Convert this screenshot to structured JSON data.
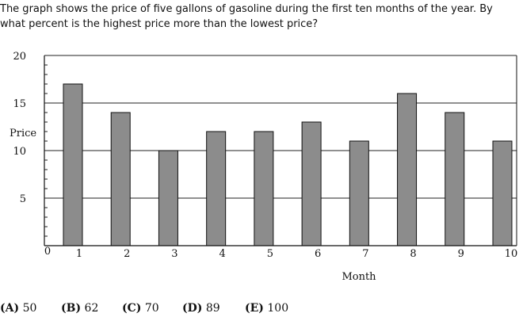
{
  "question": {
    "text": "The graph shows the price of five gallons of gasoline during the first ten months of the year. By what percent is the highest price more than the lowest price?"
  },
  "chart_data": {
    "type": "bar",
    "categories": [
      "1",
      "2",
      "3",
      "4",
      "5",
      "6",
      "7",
      "8",
      "9",
      "10"
    ],
    "values": [
      17,
      14,
      10,
      12,
      12,
      13,
      11,
      16,
      14,
      11
    ],
    "xlabel": "Month",
    "ylabel": "Price",
    "x_origin_label": "0",
    "yticks": [
      5,
      10,
      15,
      20
    ],
    "ylim": [
      0,
      20
    ],
    "grid": "horizontal major lines at 5, 10, 15, 20; minor tick marks on the y axis",
    "bar_color": "#8c8c8c"
  },
  "choices": [
    {
      "letter": "(A)",
      "value": "50"
    },
    {
      "letter": "(B)",
      "value": "62"
    },
    {
      "letter": "(C)",
      "value": "70"
    },
    {
      "letter": "(D)",
      "value": "89"
    },
    {
      "letter": "(E)",
      "value": "100"
    }
  ]
}
